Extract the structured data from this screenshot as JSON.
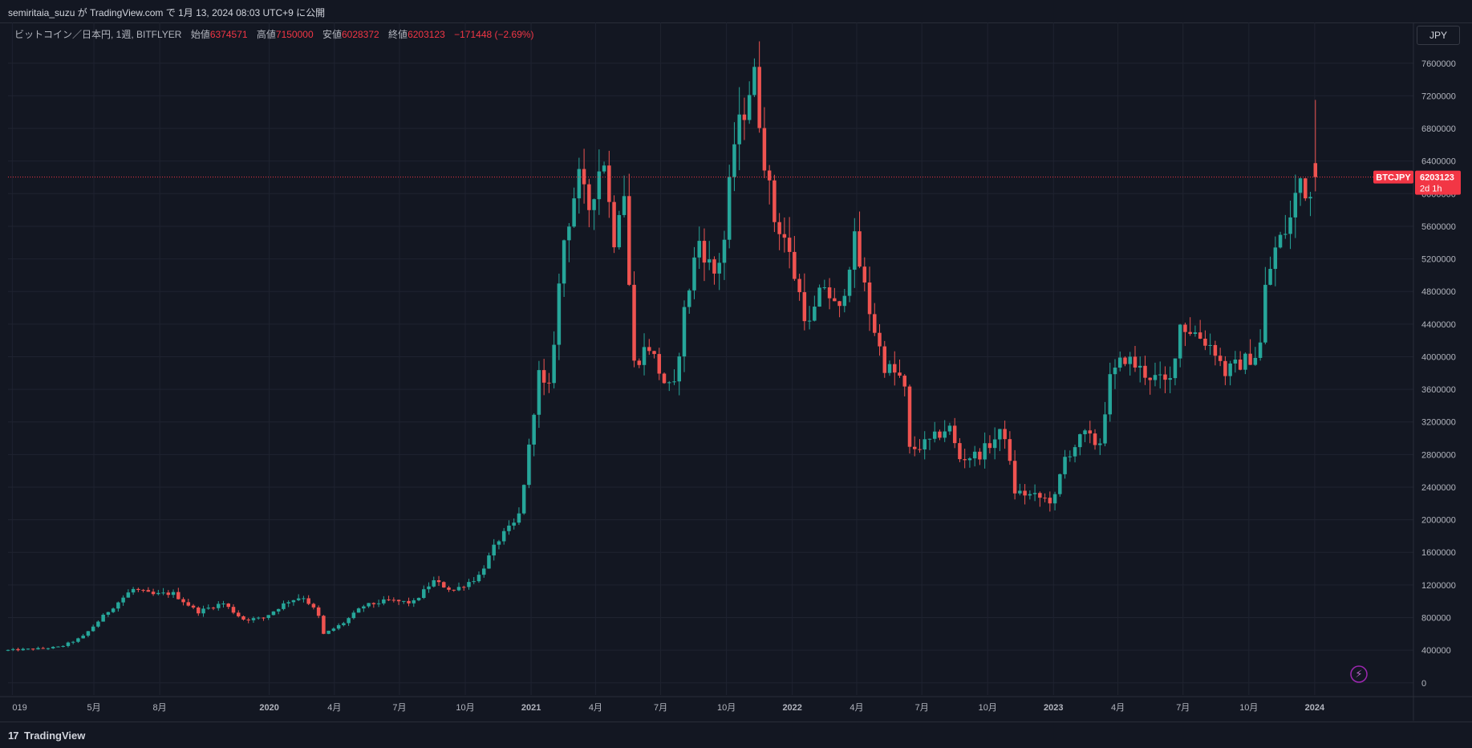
{
  "header": {
    "published": "semiritaia_suzu が TradingView.com で 1月 13, 2024 08:03 UTC+9 に公開"
  },
  "legend": {
    "symbol": "ビットコイン／日本円, 1週, BITFLYER",
    "open_label": "始値",
    "open": "6374571",
    "high_label": "高値",
    "high": "7150000",
    "low_label": "安値",
    "low": "6028372",
    "close_label": "終値",
    "close": "6203123",
    "change": "−171448 (−2.69%)"
  },
  "currency": "JPY",
  "price_tag": {
    "symbol": "BTCJPY",
    "price": "6203123",
    "countdown": "2d 1h"
  },
  "brand": {
    "icon": "17",
    "name": "TradingView"
  },
  "colors": {
    "up": "#26a69a",
    "down": "#ef5350",
    "background": "#131722",
    "grid": "#1f2330",
    "text": "#b2b5be",
    "price_line": "#f23645"
  },
  "chart_data": {
    "type": "candlestick",
    "interval": "1W",
    "y_ticks": [
      0,
      400000,
      800000,
      1200000,
      1600000,
      2000000,
      2400000,
      2800000,
      3200000,
      3600000,
      4000000,
      4400000,
      4800000,
      5200000,
      5600000,
      6000000,
      6400000,
      6800000,
      7200000,
      7600000
    ],
    "x_ticks": [
      {
        "label": "019",
        "date": "2019-01-07"
      },
      {
        "label": "5月",
        "date": "2019-05-01"
      },
      {
        "label": "8月",
        "date": "2019-08-01"
      },
      {
        "label": "2020",
        "date": "2020-01-01"
      },
      {
        "label": "4月",
        "date": "2020-04-01"
      },
      {
        "label": "7月",
        "date": "2020-07-01"
      },
      {
        "label": "10月",
        "date": "2020-10-01"
      },
      {
        "label": "2021",
        "date": "2021-01-01"
      },
      {
        "label": "4月",
        "date": "2021-04-01"
      },
      {
        "label": "7月",
        "date": "2021-07-01"
      },
      {
        "label": "10月",
        "date": "2021-10-01"
      },
      {
        "label": "2022",
        "date": "2022-01-01"
      },
      {
        "label": "4月",
        "date": "2022-04-01"
      },
      {
        "label": "7月",
        "date": "2022-07-01"
      },
      {
        "label": "10月",
        "date": "2022-10-01"
      },
      {
        "label": "2023",
        "date": "2023-01-01"
      },
      {
        "label": "4月",
        "date": "2023-04-01"
      },
      {
        "label": "7月",
        "date": "2023-07-01"
      },
      {
        "label": "10月",
        "date": "2023-10-01"
      },
      {
        "label": "2024",
        "date": "2024-01-01"
      }
    ],
    "x_range": [
      "2019-01-01",
      "2024-05-18"
    ],
    "y_range": [
      -150000,
      8100000
    ],
    "current_price": 6203123,
    "key_closes": [
      [
        "2019-01-01",
        400000
      ],
      [
        "2019-02-15",
        420000
      ],
      [
        "2019-03-15",
        440000
      ],
      [
        "2019-04-15",
        560000
      ],
      [
        "2019-05-20",
        870000
      ],
      [
        "2019-06-24",
        1150000
      ],
      [
        "2019-07-22",
        1080000
      ],
      [
        "2019-08-19",
        1100000
      ],
      [
        "2019-09-23",
        870000
      ],
      [
        "2019-10-28",
        980000
      ],
      [
        "2019-11-25",
        780000
      ],
      [
        "2019-12-23",
        790000
      ],
      [
        "2020-01-27",
        1000000
      ],
      [
        "2020-02-17",
        1060000
      ],
      [
        "2020-03-09",
        850000
      ],
      [
        "2020-03-16",
        590000
      ],
      [
        "2020-04-13",
        730000
      ],
      [
        "2020-05-11",
        940000
      ],
      [
        "2020-06-15",
        1010000
      ],
      [
        "2020-07-20",
        980000
      ],
      [
        "2020-08-17",
        1250000
      ],
      [
        "2020-09-14",
        1130000
      ],
      [
        "2020-10-19",
        1300000
      ],
      [
        "2020-11-16",
        1750000
      ],
      [
        "2020-12-14",
        2000000
      ],
      [
        "2020-12-28",
        2800000
      ],
      [
        "2021-01-11",
        3800000
      ],
      [
        "2021-01-25",
        3500000
      ],
      [
        "2021-02-15",
        5400000
      ],
      [
        "2021-03-08",
        6200000
      ],
      [
        "2021-03-22",
        5800000
      ],
      [
        "2021-04-12",
        6500000
      ],
      [
        "2021-04-26",
        5400000
      ],
      [
        "2021-05-10",
        6200000
      ],
      [
        "2021-05-24",
        3900000
      ],
      [
        "2021-06-14",
        4150000
      ],
      [
        "2021-07-05",
        3700000
      ],
      [
        "2021-07-19",
        3550000
      ],
      [
        "2021-08-02",
        4500000
      ],
      [
        "2021-08-23",
        5450000
      ],
      [
        "2021-09-13",
        5000000
      ],
      [
        "2021-09-27",
        5350000
      ],
      [
        "2021-10-11",
        6600000
      ],
      [
        "2021-10-25",
        7000000
      ],
      [
        "2021-11-08",
        7500000
      ],
      [
        "2021-11-22",
        6500000
      ],
      [
        "2021-12-06",
        5700000
      ],
      [
        "2021-12-20",
        5500000
      ],
      [
        "2022-01-10",
        4800000
      ],
      [
        "2022-01-24",
        4350000
      ],
      [
        "2022-02-14",
        4900000
      ],
      [
        "2022-03-07",
        4500000
      ],
      [
        "2022-03-28",
        5450000
      ],
      [
        "2022-04-18",
        4600000
      ],
      [
        "2022-05-09",
        3900000
      ],
      [
        "2022-06-06",
        3700000
      ],
      [
        "2022-06-13",
        2850000
      ],
      [
        "2022-07-11",
        2950000
      ],
      [
        "2022-08-08",
        3150000
      ],
      [
        "2022-08-22",
        2750000
      ],
      [
        "2022-09-19",
        2800000
      ],
      [
        "2022-10-24",
        3100000
      ],
      [
        "2022-11-07",
        2350000
      ],
      [
        "2022-12-12",
        2270000
      ],
      [
        "2023-01-02",
        2230000
      ],
      [
        "2023-01-16",
        2750000
      ],
      [
        "2023-02-13",
        3050000
      ],
      [
        "2023-03-06",
        2900000
      ],
      [
        "2023-03-20",
        3700000
      ],
      [
        "2023-04-10",
        4000000
      ],
      [
        "2023-05-08",
        3800000
      ],
      [
        "2023-06-12",
        3650000
      ],
      [
        "2023-06-26",
        4400000
      ],
      [
        "2023-07-17",
        4300000
      ],
      [
        "2023-08-14",
        4100000
      ],
      [
        "2023-08-28",
        3800000
      ],
      [
        "2023-09-25",
        3950000
      ],
      [
        "2023-10-16",
        4050000
      ],
      [
        "2023-10-23",
        4800000
      ],
      [
        "2023-11-06",
        5300000
      ],
      [
        "2023-11-27",
        5650000
      ],
      [
        "2023-12-11",
        6200000
      ],
      [
        "2023-12-25",
        5950000
      ],
      [
        "2024-01-08",
        6203123
      ]
    ]
  }
}
